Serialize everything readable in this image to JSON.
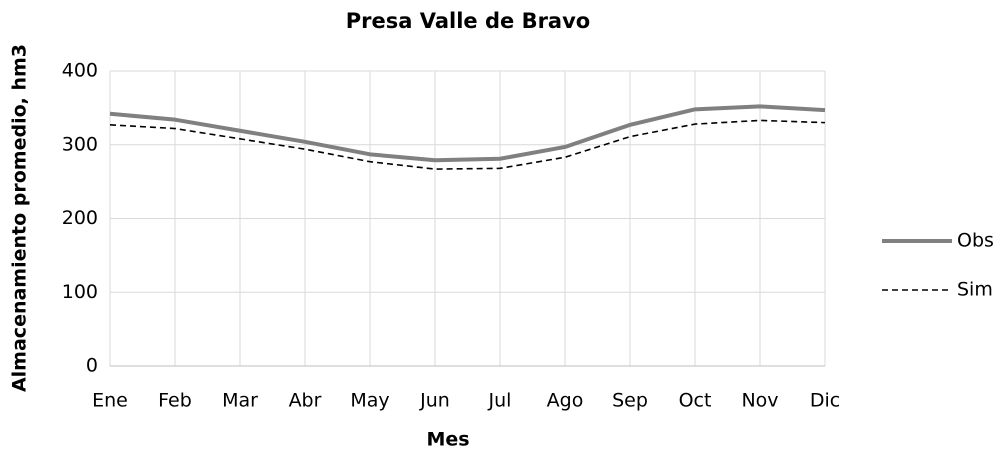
{
  "chart_data": {
    "type": "line",
    "title": "Presa Valle de Bravo",
    "x_label": "Mes",
    "y_label": "Almacenamiento promedio,  hm3",
    "categories": [
      "Ene",
      "Feb",
      "Mar",
      "Abr",
      "May",
      "Jun",
      "Jul",
      "Ago",
      "Sep",
      "Oct",
      "Nov",
      "Dic"
    ],
    "series": [
      {
        "name": "Obs",
        "color": "#808080",
        "dash": false,
        "values": [
          342,
          334,
          319,
          304,
          287,
          279,
          281,
          297,
          327,
          348,
          352,
          347
        ]
      },
      {
        "name": "Sim",
        "color": "#000000",
        "dash": true,
        "values": [
          327,
          322,
          308,
          294,
          277,
          267,
          268,
          283,
          311,
          328,
          333,
          330
        ]
      }
    ],
    "ylim": [
      0,
      400
    ],
    "yticks": [
      0,
      100,
      200,
      300,
      400
    ],
    "grid": true,
    "legend": "right"
  }
}
